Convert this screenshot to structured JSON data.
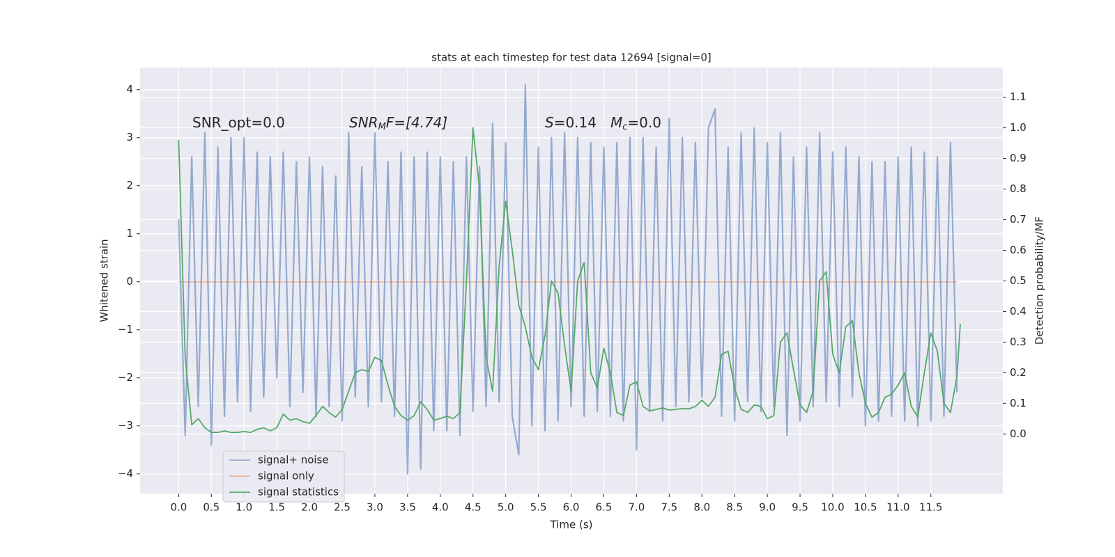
{
  "chart_data": {
    "type": "line",
    "title": "stats at each timestep for test data 12694 [signal=0]",
    "xlabel": "Time (s)",
    "ylabel": "Whitened strain",
    "y2label": "Detection probability/MF",
    "annotations": [
      {
        "parts": [
          "SNR_opt=0.0"
        ]
      },
      {
        "parts": [
          "SNR",
          "M",
          "F=[4.74]"
        ]
      },
      {
        "parts": [
          "S",
          "=0.14"
        ]
      },
      {
        "parts": [
          "M",
          "c",
          "=0.0"
        ]
      }
    ],
    "xlim": [
      -0.59,
      12.6
    ],
    "ylim": [
      -4.41,
      4.46
    ],
    "y2lim": [
      -0.195,
      1.197
    ],
    "xticks": [
      {
        "value": 0,
        "label": "0.0"
      },
      0.5,
      {
        "value": 1,
        "label": "1.0"
      },
      1.5,
      {
        "value": 2,
        "label": "2.0"
      },
      2.5,
      {
        "value": 3,
        "label": "3.0"
      },
      3.5,
      {
        "value": 4,
        "label": "4.0"
      },
      4.5,
      {
        "value": 5,
        "label": "5.0"
      },
      5.5,
      {
        "value": 6,
        "label": "6.0"
      },
      6.5,
      {
        "value": 7,
        "label": "7.0"
      },
      7.5,
      {
        "value": 8,
        "label": "8.0"
      },
      8.5,
      {
        "value": 9,
        "label": "9.0"
      },
      9.5,
      {
        "value": 10,
        "label": "10.0"
      },
      10.5,
      {
        "value": 11,
        "label": "11.0"
      },
      11.5
    ],
    "yticks": [
      {
        "value": -4,
        "label": "−4"
      },
      {
        "value": -3,
        "label": "−3"
      },
      {
        "value": -2,
        "label": "−2"
      },
      {
        "value": -1,
        "label": "−1"
      },
      0,
      1,
      2,
      3,
      4
    ],
    "y2ticks": [
      {
        "value": 0,
        "label": "0.0"
      },
      0.1,
      0.2,
      0.3,
      0.4,
      0.5,
      0.6,
      0.7,
      0.8,
      0.9,
      {
        "value": 1,
        "label": "1.0"
      },
      1.1
    ],
    "grid": true,
    "legend": "lower left",
    "series": [
      {
        "name": "signal+ noise",
        "color": "#4c72b0",
        "axis": "y",
        "x": [
          0.0,
          0.1,
          0.2,
          0.3,
          0.4,
          0.5,
          0.6,
          0.7,
          0.8,
          0.9,
          1.0,
          1.1,
          1.2,
          1.3,
          1.4,
          1.5,
          1.6,
          1.7,
          1.8,
          1.9,
          2.0,
          2.1,
          2.2,
          2.3,
          2.4,
          2.5,
          2.6,
          2.7,
          2.8,
          2.9,
          3.0,
          3.1,
          3.2,
          3.3,
          3.4,
          3.5,
          3.6,
          3.7,
          3.8,
          3.9,
          4.0,
          4.1,
          4.2,
          4.3,
          4.4,
          4.5,
          4.6,
          4.7,
          4.8,
          4.9,
          5.0,
          5.1,
          5.2,
          5.3,
          5.4,
          5.5,
          5.6,
          5.7,
          5.8,
          5.9,
          6.0,
          6.1,
          6.2,
          6.3,
          6.4,
          6.5,
          6.6,
          6.7,
          6.8,
          6.9,
          7.0,
          7.1,
          7.2,
          7.3,
          7.4,
          7.5,
          7.6,
          7.7,
          7.8,
          7.9,
          8.0,
          8.1,
          8.2,
          8.3,
          8.4,
          8.5,
          8.6,
          8.7,
          8.8,
          8.9,
          9.0,
          9.1,
          9.2,
          9.3,
          9.4,
          9.5,
          9.6,
          9.7,
          9.8,
          9.9,
          10.0,
          10.1,
          10.2,
          10.3,
          10.4,
          10.5,
          10.6,
          10.7,
          10.8,
          10.9,
          11.0,
          11.1,
          11.2,
          11.3,
          11.4,
          11.5,
          11.6,
          11.7,
          11.8,
          11.9
        ],
        "values": [
          1.3,
          -3.2,
          2.6,
          -2.6,
          3.1,
          -3.4,
          2.8,
          -2.8,
          3.0,
          -2.5,
          3.0,
          -2.7,
          2.7,
          -2.4,
          2.6,
          -2.0,
          2.7,
          -2.6,
          2.5,
          -2.3,
          2.6,
          -2.8,
          2.4,
          -2.6,
          2.2,
          -2.9,
          3.1,
          -2.4,
          2.4,
          -2.6,
          3.1,
          -2.5,
          2.5,
          -2.8,
          2.7,
          -4.0,
          2.6,
          -3.9,
          2.7,
          -3.1,
          2.6,
          -3.1,
          2.5,
          -3.2,
          2.6,
          -2.7,
          2.4,
          -2.6,
          3.3,
          -2.5,
          2.9,
          -2.8,
          -3.6,
          4.1,
          -3.0,
          2.8,
          -3.1,
          3.0,
          -2.9,
          3.1,
          -2.6,
          3.0,
          -2.8,
          2.9,
          -2.7,
          2.8,
          -2.8,
          2.9,
          -2.9,
          3.0,
          -3.5,
          3.0,
          -2.7,
          2.8,
          -2.9,
          3.4,
          -2.6,
          3.0,
          -2.5,
          2.9,
          -2.4,
          3.2,
          3.6,
          -2.8,
          2.8,
          -2.9,
          3.1,
          -2.5,
          3.2,
          -2.7,
          2.9,
          -2.6,
          3.1,
          -3.2,
          2.6,
          -2.9,
          2.8,
          -2.6,
          3.1,
          -2.5,
          2.7,
          -2.6,
          2.8,
          -2.4,
          2.6,
          -3.0,
          2.5,
          -2.9,
          2.5,
          -2.8,
          2.6,
          -2.9,
          2.8,
          -3.0,
          2.7,
          -2.9,
          2.6,
          -2.8,
          2.9,
          -2.3
        ]
      },
      {
        "name": "signal only",
        "color": "#dd8452",
        "axis": "y",
        "x": [
          0.0,
          11.9
        ],
        "values": [
          0,
          0
        ]
      },
      {
        "name": "signal statistics",
        "color": "#55a868",
        "axis": "y2",
        "x": [
          0.0,
          0.1,
          0.2,
          0.3,
          0.4,
          0.5,
          0.6,
          0.7,
          0.8,
          0.9,
          1.0,
          1.1,
          1.2,
          1.3,
          1.4,
          1.5,
          1.6,
          1.7,
          1.8,
          1.9,
          2.0,
          2.1,
          2.2,
          2.3,
          2.4,
          2.5,
          2.6,
          2.7,
          2.8,
          2.9,
          3.0,
          3.1,
          3.2,
          3.3,
          3.4,
          3.5,
          3.6,
          3.7,
          3.8,
          3.9,
          4.0,
          4.1,
          4.2,
          4.3,
          4.4,
          4.5,
          4.6,
          4.7,
          4.8,
          4.9,
          5.0,
          5.1,
          5.2,
          5.3,
          5.4,
          5.5,
          5.6,
          5.7,
          5.8,
          5.9,
          6.0,
          6.1,
          6.2,
          6.3,
          6.4,
          6.5,
          6.6,
          6.7,
          6.8,
          6.9,
          7.0,
          7.1,
          7.2,
          7.3,
          7.4,
          7.5,
          7.6,
          7.7,
          7.8,
          7.9,
          8.0,
          8.1,
          8.2,
          8.3,
          8.4,
          8.5,
          8.6,
          8.7,
          8.8,
          8.9,
          9.0,
          9.1,
          9.2,
          9.3,
          9.4,
          9.5,
          9.6,
          9.7,
          9.8,
          9.9,
          10.0,
          10.1,
          10.2,
          10.3,
          10.4,
          10.5,
          10.6,
          10.7,
          10.8,
          10.9,
          11.0,
          11.1,
          11.2,
          11.3,
          11.4,
          11.5,
          11.6,
          11.7,
          11.8,
          11.9,
          11.95
        ],
        "values": [
          0.96,
          0.25,
          0.03,
          0.05,
          0.02,
          0.005,
          0.005,
          0.01,
          0.005,
          0.005,
          0.008,
          0.005,
          0.015,
          0.02,
          0.01,
          0.02,
          0.065,
          0.045,
          0.05,
          0.04,
          0.035,
          0.06,
          0.09,
          0.07,
          0.055,
          0.08,
          0.14,
          0.2,
          0.21,
          0.205,
          0.25,
          0.24,
          0.16,
          0.09,
          0.06,
          0.045,
          0.06,
          0.105,
          0.08,
          0.045,
          0.05,
          0.058,
          0.05,
          0.07,
          0.5,
          1.0,
          0.8,
          0.25,
          0.14,
          0.55,
          0.76,
          0.6,
          0.42,
          0.35,
          0.25,
          0.21,
          0.32,
          0.5,
          0.46,
          0.29,
          0.14,
          0.5,
          0.56,
          0.2,
          0.15,
          0.28,
          0.2,
          0.07,
          0.06,
          0.16,
          0.17,
          0.09,
          0.075,
          0.08,
          0.085,
          0.078,
          0.08,
          0.083,
          0.082,
          0.09,
          0.11,
          0.09,
          0.12,
          0.26,
          0.27,
          0.15,
          0.08,
          0.07,
          0.095,
          0.09,
          0.05,
          0.06,
          0.3,
          0.33,
          0.21,
          0.095,
          0.07,
          0.14,
          0.5,
          0.53,
          0.26,
          0.2,
          0.35,
          0.37,
          0.2,
          0.1,
          0.055,
          0.07,
          0.12,
          0.13,
          0.16,
          0.2,
          0.09,
          0.055,
          0.2,
          0.33,
          0.27,
          0.1,
          0.07,
          0.19,
          0.36
        ]
      }
    ]
  }
}
